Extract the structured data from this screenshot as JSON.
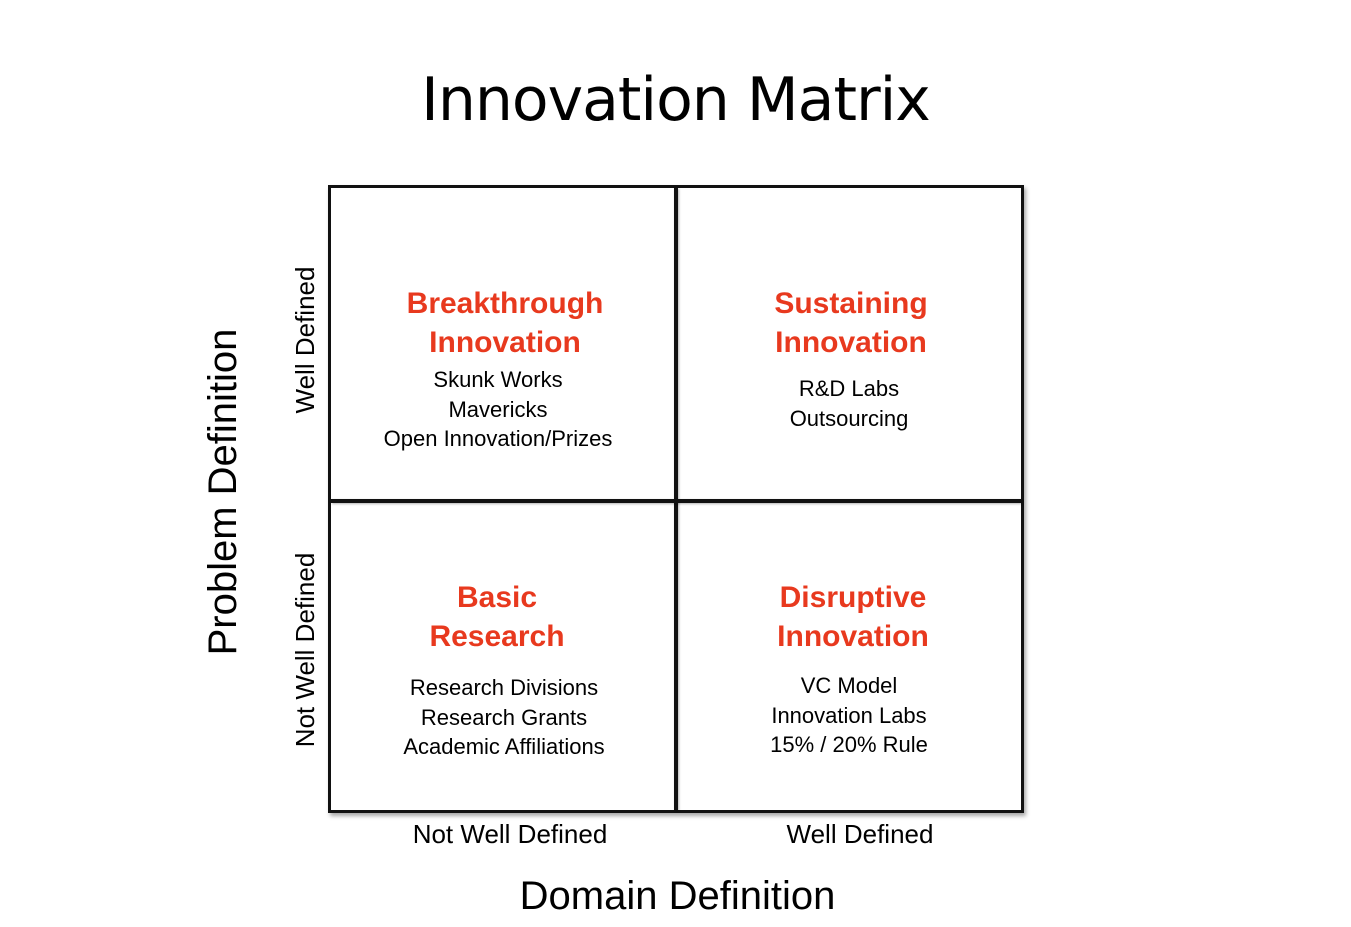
{
  "title": "Innovation Matrix",
  "axes": {
    "y_title": "Problem Definition",
    "y_ticks": [
      "Well Defined",
      "Not Well Defined"
    ],
    "x_title": "Domain Definition",
    "x_ticks": [
      "Not Well Defined",
      "Well Defined"
    ]
  },
  "quadrants": {
    "top_left": {
      "title_lines": [
        "Breakthrough",
        "Innovation"
      ],
      "items": [
        "Skunk Works",
        "Mavericks",
        "Open Innovation/Prizes"
      ]
    },
    "top_right": {
      "title_lines": [
        "Sustaining",
        "Innovation"
      ],
      "items": [
        "R&D Labs",
        "Outsourcing"
      ]
    },
    "bottom_left": {
      "title_lines": [
        "Basic",
        "Research"
      ],
      "items": [
        "Research Divisions",
        "Research Grants",
        "Academic Affiliations"
      ]
    },
    "bottom_right": {
      "title_lines": [
        "Disruptive",
        "Innovation"
      ],
      "items": [
        "VC Model",
        "Innovation Labs",
        "15% / 20% Rule"
      ]
    }
  },
  "colors": {
    "quadrant_title": "#e8391e",
    "text": "#000000",
    "grid_line": "#111111",
    "background": "#ffffff"
  }
}
